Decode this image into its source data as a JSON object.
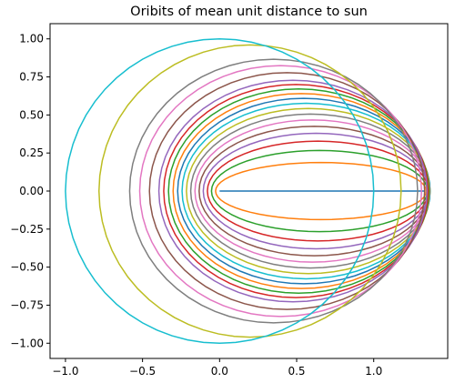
{
  "chart_data": {
    "type": "line",
    "title": "Oribits of mean unit distance to sun",
    "xlabel": "",
    "ylabel": "",
    "xlim": [
      -1.1,
      1.48
    ],
    "ylim": [
      -1.1,
      1.1
    ],
    "x_ticks": [
      -1.0,
      -0.5,
      0.0,
      0.5,
      1.0
    ],
    "x_tick_labels": [
      "−1.0",
      "−0.5",
      "0.0",
      "0.5",
      "1.0"
    ],
    "y_ticks": [
      1.0,
      0.75,
      0.5,
      0.25,
      0.0,
      -0.25,
      -0.5,
      -0.75,
      -1.0
    ],
    "y_tick_labels": [
      "1.00",
      "0.75",
      "0.50",
      "0.25",
      "0.00",
      "−0.25",
      "−0.50",
      "−0.75",
      "−1.00"
    ],
    "grid": false,
    "legend": false,
    "eccentricity_exponent": 1.5,
    "samples_per_orbit": 60,
    "series": [
      {
        "semi_minor_axis": 0.0,
        "color": "#1f77b4"
      },
      {
        "semi_minor_axis": 0.1875,
        "color": "#ff7f0e"
      },
      {
        "semi_minor_axis": 0.2666,
        "color": "#2ca02c"
      },
      {
        "semi_minor_axis": 0.3277,
        "color": "#d62728"
      },
      {
        "semi_minor_axis": 0.3796,
        "color": "#9467bd"
      },
      {
        "semi_minor_axis": 0.4255,
        "color": "#8c564b"
      },
      {
        "semi_minor_axis": 0.4672,
        "color": "#e377c2"
      },
      {
        "semi_minor_axis": 0.5059,
        "color": "#7f7f7f"
      },
      {
        "semi_minor_axis": 0.5422,
        "color": "#bcbd22"
      },
      {
        "semi_minor_axis": 0.5766,
        "color": "#17becf"
      },
      {
        "semi_minor_axis": 0.6093,
        "color": "#1f77b4"
      },
      {
        "semi_minor_axis": 0.6407,
        "color": "#ff7f0e"
      },
      {
        "semi_minor_axis": 0.6708,
        "color": "#2ca02c"
      },
      {
        "semi_minor_axis": 0.7,
        "color": "#d62728"
      },
      {
        "semi_minor_axis": 0.7282,
        "color": "#9467bd"
      },
      {
        "semi_minor_axis": 0.7782,
        "color": "#8c564b"
      },
      {
        "semi_minor_axis": 0.8242,
        "color": "#e377c2"
      },
      {
        "semi_minor_axis": 0.866,
        "color": "#7f7f7f"
      },
      {
        "semi_minor_axis": 0.96,
        "color": "#bcbd22"
      },
      {
        "semi_minor_axis": 1.0,
        "color": "#17becf"
      }
    ]
  }
}
